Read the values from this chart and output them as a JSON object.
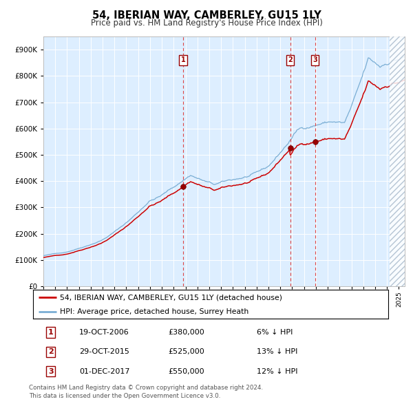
{
  "title": "54, IBERIAN WAY, CAMBERLEY, GU15 1LY",
  "subtitle": "Price paid vs. HM Land Registry's House Price Index (HPI)",
  "legend_line1": "54, IBERIAN WAY, CAMBERLEY, GU15 1LY (detached house)",
  "legend_line2": "HPI: Average price, detached house, Surrey Heath",
  "footer1": "Contains HM Land Registry data © Crown copyright and database right 2024.",
  "footer2": "This data is licensed under the Open Government Licence v3.0.",
  "sale_color": "#cc0000",
  "hpi_color": "#7aaed4",
  "background_color": "#ddeeff",
  "ylim": [
    0,
    950000
  ],
  "yticks": [
    0,
    100000,
    200000,
    300000,
    400000,
    500000,
    600000,
    700000,
    800000,
    900000
  ],
  "sales": [
    {
      "date": 2006.8,
      "price": 380000,
      "label": "1"
    },
    {
      "date": 2015.83,
      "price": 525000,
      "label": "2"
    },
    {
      "date": 2017.92,
      "price": 550000,
      "label": "3"
    }
  ],
  "vlines": [
    2006.8,
    2015.83,
    2017.92
  ],
  "table_rows": [
    [
      "1",
      "19-OCT-2006",
      "£380,000",
      "6% ↓ HPI"
    ],
    [
      "2",
      "29-OCT-2015",
      "£525,000",
      "13% ↓ HPI"
    ],
    [
      "3",
      "01-DEC-2017",
      "£550,000",
      "12% ↓ HPI"
    ]
  ],
  "xmin": 1995,
  "xmax": 2025.5,
  "hatch_start": 2024.25
}
